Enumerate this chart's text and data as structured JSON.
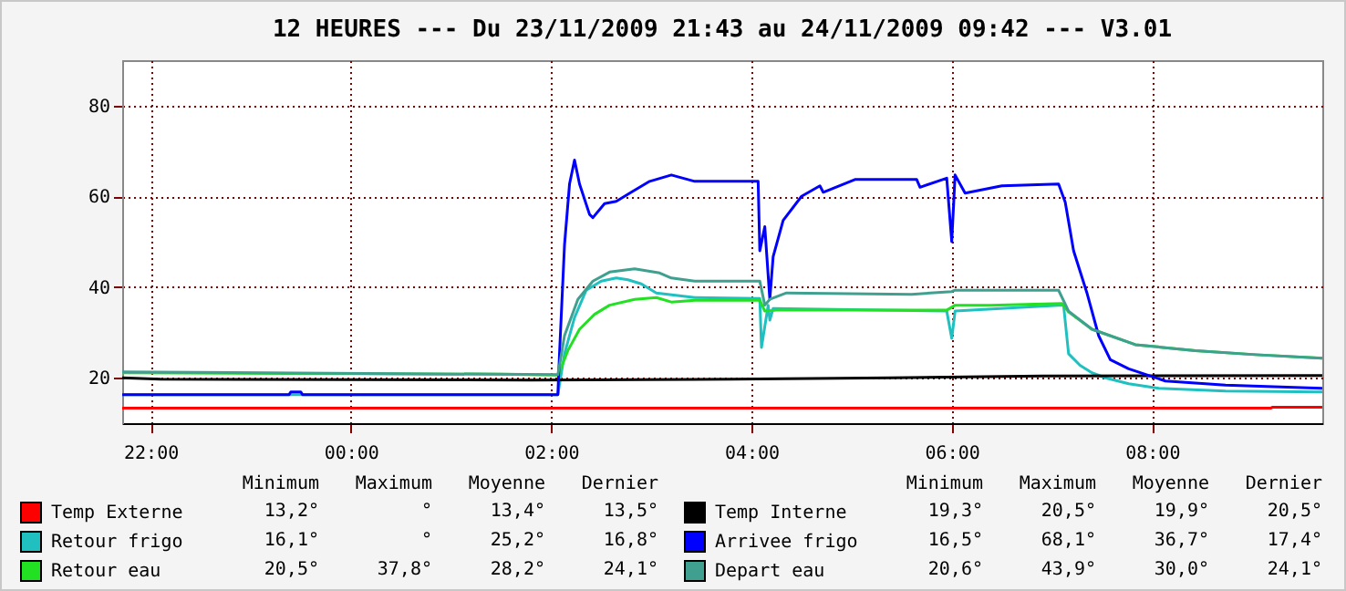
{
  "chart_data": {
    "type": "line",
    "title": "12 HEURES --- Du 23/11/2009 21:43 au 24/11/2009 09:42 --- V3.01",
    "xlim": [
      "2009-11-23T21:43",
      "2009-11-24T09:42"
    ],
    "xticks": [
      {
        "value": "2009-11-23T22:00",
        "label": "22:00"
      },
      {
        "value": "2009-11-24T00:00",
        "label": "00:00"
      },
      {
        "value": "2009-11-24T02:00",
        "label": "02:00"
      },
      {
        "value": "2009-11-24T04:00",
        "label": "04:00"
      },
      {
        "value": "2009-11-24T06:00",
        "label": "06:00"
      },
      {
        "value": "2009-11-24T08:00",
        "label": "08:00"
      }
    ],
    "ylim": [
      10,
      90
    ],
    "yticks": [
      20,
      40,
      60,
      80
    ],
    "grid": true,
    "legend": "bottom",
    "series": [
      {
        "name": "Temp Externe",
        "color": "#ff0000",
        "x": [
          "2009-11-23T21:43",
          "2009-11-24T09:11",
          "2009-11-24T09:12",
          "2009-11-24T09:42"
        ],
        "values": [
          13.3,
          13.3,
          13.5,
          13.5
        ]
      },
      {
        "name": "Retour frigo",
        "color": "#20c0c0",
        "x": [
          "2009-11-23T21:43",
          "2009-11-24T02:04",
          "2009-11-24T02:08",
          "2009-11-24T02:14",
          "2009-11-24T02:21",
          "2009-11-24T02:30",
          "2009-11-24T02:39",
          "2009-11-24T02:46",
          "2009-11-24T02:54",
          "2009-11-24T03:03",
          "2009-11-24T03:26",
          "2009-11-24T04:05",
          "2009-11-24T04:06",
          "2009-11-24T04:10",
          "2009-11-24T04:11",
          "2009-11-24T04:13",
          "2009-11-24T05:57",
          "2009-11-24T06:00",
          "2009-11-24T06:02",
          "2009-11-24T07:04",
          "2009-11-24T07:07",
          "2009-11-24T07:10",
          "2009-11-24T07:17",
          "2009-11-24T07:24",
          "2009-11-24T07:32",
          "2009-11-24T07:46",
          "2009-11-24T08:04",
          "2009-11-24T08:44",
          "2009-11-24T09:42"
        ],
        "values": [
          16.3,
          16.3,
          25.3,
          33.3,
          39.3,
          41.3,
          42,
          41.6,
          40.7,
          38.7,
          37.7,
          37.5,
          26.7,
          36,
          32.7,
          35.3,
          34.7,
          28.7,
          34.7,
          36,
          36,
          25.3,
          22.7,
          21.1,
          20,
          18.7,
          17.7,
          17.1,
          16.9
        ]
      },
      {
        "name": "Retour eau",
        "color": "#22e022",
        "x": [
          "2009-11-23T21:43",
          "2009-11-24T01:30",
          "2009-11-24T02:04",
          "2009-11-24T02:05",
          "2009-11-24T02:10",
          "2009-11-24T02:17",
          "2009-11-24T02:26",
          "2009-11-24T02:35",
          "2009-11-24T02:50",
          "2009-11-24T03:03",
          "2009-11-24T03:12",
          "2009-11-24T03:26",
          "2009-11-24T04:05",
          "2009-11-24T04:08",
          "2009-11-24T04:15",
          "2009-11-24T05:57",
          "2009-11-24T06:02",
          "2009-11-24T06:23",
          "2009-11-24T07:06",
          "2009-11-24T07:10",
          "2009-11-24T07:24",
          "2009-11-24T07:50",
          "2009-11-24T08:26",
          "2009-11-24T09:02",
          "2009-11-24T09:42"
        ],
        "values": [
          21.1,
          20.8,
          20.6,
          21.3,
          26,
          30.7,
          34,
          36,
          37.3,
          37.7,
          36.7,
          37.1,
          37.1,
          34.7,
          34.9,
          34.9,
          36,
          36,
          36.4,
          34.5,
          30.7,
          27.3,
          26,
          25.1,
          24.3
        ]
      },
      {
        "name": "Temp Interne",
        "color": "#000000",
        "x": [
          "2009-11-23T21:43",
          "2009-11-23T22:06",
          "2009-11-24T01:48",
          "2009-11-24T03:48",
          "2009-11-24T05:24",
          "2009-11-24T06:54",
          "2009-11-24T09:42"
        ],
        "values": [
          20,
          19.7,
          19.5,
          19.7,
          20,
          20.4,
          20.5
        ]
      },
      {
        "name": "Arrivee frigo",
        "color": "#0000ff",
        "x": [
          "2009-11-23T21:43",
          "2009-11-23T23:23",
          "2009-11-23T23:24",
          "2009-11-23T23:30",
          "2009-11-23T23:31",
          "2009-11-24T02:04",
          "2009-11-24T02:05",
          "2009-11-24T02:08",
          "2009-11-24T02:11",
          "2009-11-24T02:14",
          "2009-11-24T02:17",
          "2009-11-24T02:23",
          "2009-11-24T02:25",
          "2009-11-24T02:32",
          "2009-11-24T02:39",
          "2009-11-24T02:48",
          "2009-11-24T02:59",
          "2009-11-24T03:12",
          "2009-11-24T03:26",
          "2009-11-24T04:04",
          "2009-11-24T04:05",
          "2009-11-24T04:08",
          "2009-11-24T04:11",
          "2009-11-24T04:13",
          "2009-11-24T04:19",
          "2009-11-24T04:30",
          "2009-11-24T04:41",
          "2009-11-24T04:43",
          "2009-11-24T05:02",
          "2009-11-24T05:39",
          "2009-11-24T05:41",
          "2009-11-24T05:57",
          "2009-11-24T06:00",
          "2009-11-24T06:02",
          "2009-11-24T06:08",
          "2009-11-24T06:30",
          "2009-11-24T07:04",
          "2009-11-24T07:08",
          "2009-11-24T07:13",
          "2009-11-24T07:21",
          "2009-11-24T07:28",
          "2009-11-24T07:35",
          "2009-11-24T07:46",
          "2009-11-24T08:08",
          "2009-11-24T08:44",
          "2009-11-24T09:42"
        ],
        "values": [
          16.3,
          16.3,
          16.9,
          16.9,
          16.3,
          16.3,
          25.3,
          49.3,
          62.7,
          68,
          62.7,
          56,
          55.3,
          58.4,
          58.9,
          60.9,
          63.3,
          64.7,
          63.3,
          63.3,
          48,
          53.3,
          37.3,
          46.7,
          54.7,
          60,
          62.3,
          60.9,
          63.7,
          63.7,
          62,
          64,
          50,
          64.7,
          60.7,
          62.3,
          62.7,
          58.7,
          48,
          38.7,
          29.3,
          24,
          22,
          19.3,
          18.4,
          17.7
        ]
      },
      {
        "name": "Depart eau",
        "color": "#40a090",
        "x": [
          "2009-11-23T21:43",
          "2009-11-24T02:04",
          "2009-11-24T02:05",
          "2009-11-24T02:08",
          "2009-11-24T02:16",
          "2009-11-24T02:25",
          "2009-11-24T02:35",
          "2009-11-24T02:50",
          "2009-11-24T03:05",
          "2009-11-24T03:12",
          "2009-11-24T03:26",
          "2009-11-24T04:05",
          "2009-11-24T04:08",
          "2009-11-24T04:11",
          "2009-11-24T04:21",
          "2009-11-24T05:36",
          "2009-11-24T06:00",
          "2009-11-24T06:02",
          "2009-11-24T07:04",
          "2009-11-24T07:10",
          "2009-11-24T07:24",
          "2009-11-24T07:50",
          "2009-11-24T08:26",
          "2009-11-24T09:02",
          "2009-11-24T09:42"
        ],
        "values": [
          21.3,
          20.7,
          22.7,
          29.3,
          37.3,
          41.3,
          43.3,
          44,
          43.1,
          42,
          41.3,
          41.3,
          36,
          37.3,
          38.7,
          38.4,
          39,
          39.3,
          39.3,
          34.7,
          30.7,
          27.3,
          26,
          25.1,
          24.3
        ]
      }
    ],
    "annotations": [
      "Minimum",
      "Maximum",
      "Moyenne",
      "Dernier",
      "13,2°",
      "°",
      "13,4°",
      "13,5°",
      "16,1°",
      "°",
      "25,2°",
      "16,8°",
      "20,5°",
      "37,8°",
      "28,2°",
      "24,1°",
      "19,3°",
      "20,5°",
      "19,9°",
      "20,5°",
      "16,5°",
      "68,1°",
      "36,7°",
      "17,4°",
      "20,6°",
      "43,9°",
      "30,0°",
      "24,1°"
    ]
  }
}
